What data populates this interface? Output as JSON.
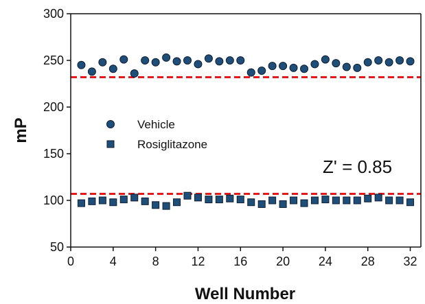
{
  "chart_data": {
    "type": "scatter",
    "title": "",
    "xlabel": "Well Number",
    "ylabel": "mP",
    "xlim": [
      0,
      33
    ],
    "ylim": [
      50,
      300
    ],
    "x_ticks": [
      0,
      4,
      8,
      12,
      16,
      20,
      24,
      28,
      32
    ],
    "y_ticks": [
      50,
      100,
      150,
      200,
      250,
      300
    ],
    "grid": false,
    "legend_position": "middle-left",
    "series": [
      {
        "name": "Vehicle",
        "marker": "circle",
        "color": "#1f4e79",
        "x": [
          1,
          2,
          3,
          4,
          5,
          6,
          7,
          8,
          9,
          10,
          11,
          12,
          13,
          14,
          15,
          16,
          17,
          18,
          19,
          20,
          21,
          22,
          23,
          24,
          25,
          26,
          27,
          28,
          29,
          30,
          31,
          32
        ],
        "y": [
          245,
          238,
          248,
          241,
          251,
          236,
          250,
          248,
          253,
          249,
          250,
          246,
          252,
          249,
          250,
          250,
          237,
          239,
          244,
          244,
          242,
          241,
          246,
          251,
          247,
          243,
          242,
          248,
          250,
          248,
          250,
          249
        ]
      },
      {
        "name": "Rosiglitazone",
        "marker": "square",
        "color": "#1f4e79",
        "x": [
          1,
          2,
          3,
          4,
          5,
          6,
          7,
          8,
          9,
          10,
          11,
          12,
          13,
          14,
          15,
          16,
          17,
          18,
          19,
          20,
          21,
          22,
          23,
          24,
          25,
          26,
          27,
          28,
          29,
          30,
          31,
          32
        ],
        "y": [
          97,
          99,
          100,
          98,
          101,
          103,
          99,
          95,
          94,
          98,
          105,
          103,
          101,
          101,
          102,
          101,
          98,
          96,
          100,
          96,
          100,
          97,
          100,
          101,
          100,
          100,
          100,
          102,
          103,
          100,
          100,
          98
        ]
      }
    ],
    "threshold_lines": [
      {
        "y": 232,
        "color": "#e31a1c",
        "style": "dashed"
      },
      {
        "y": 107,
        "color": "#e31a1c",
        "style": "dashed"
      }
    ],
    "annotation": "Z' = 0.85"
  }
}
